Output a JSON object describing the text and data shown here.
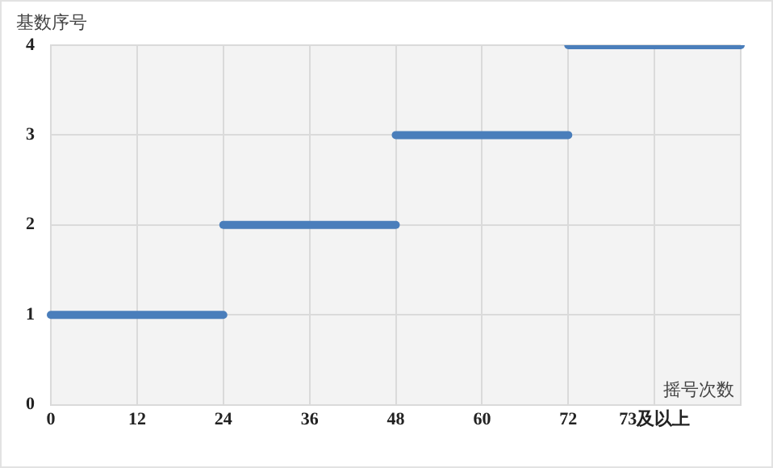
{
  "chart_data": {
    "type": "line",
    "ylabel": "基数序号",
    "xlabel": "摇号次数",
    "categories": [
      "0",
      "12",
      "24",
      "36",
      "48",
      "60",
      "72",
      "73及以上",
      null
    ],
    "series": [
      {
        "color": "#4a7ebb",
        "values": [
          1,
          1,
          1,
          null,
          null,
          null,
          null,
          null,
          null
        ]
      },
      {
        "color": "#4a7ebb",
        "values": [
          null,
          null,
          2,
          2,
          2,
          null,
          null,
          null,
          null
        ]
      },
      {
        "color": "#4a7ebb",
        "values": [
          null,
          null,
          null,
          null,
          3,
          3,
          3,
          null,
          null
        ]
      },
      {
        "color": "#4a7ebb",
        "values": [
          null,
          null,
          null,
          null,
          null,
          null,
          4,
          4,
          4
        ]
      }
    ],
    "ylim": [
      0,
      4
    ],
    "yticks": [
      0,
      1,
      2,
      3,
      4
    ],
    "grid": true,
    "legend": false,
    "marker": "none",
    "line_style": "solid"
  }
}
